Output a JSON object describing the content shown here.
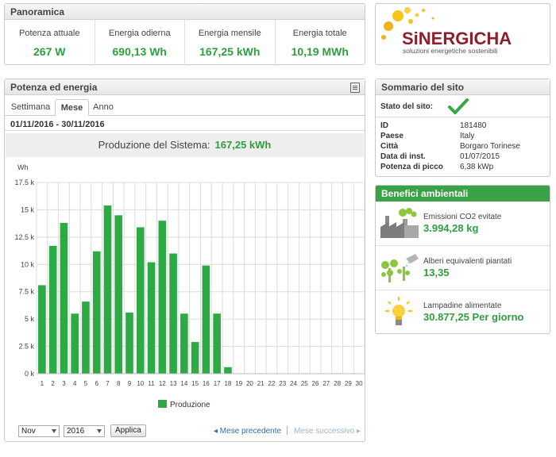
{
  "overview": {
    "title": "Panoramica",
    "items": [
      {
        "label": "Potenza attuale",
        "value": "267 W"
      },
      {
        "label": "Energia odierna",
        "value": "690,13 Wh"
      },
      {
        "label": "Energia mensile",
        "value": "167,25 kWh"
      },
      {
        "label": "Energia totale",
        "value": "10,19 MWh"
      }
    ]
  },
  "logo": {
    "name": "SiNERGICHA",
    "tagline": "soluzioni energetiche sostenibili"
  },
  "power_panel": {
    "title": "Potenza ed energia",
    "tabs": [
      "Settimana",
      "Mese",
      "Anno"
    ],
    "active_tab": "Mese",
    "date_range": "01/11/2016 - 30/11/2016",
    "production_label": "Produzione del Sistema:",
    "production_value": "167,25 kWh",
    "month_select": "Nov",
    "year_select": "2016",
    "apply_label": "Applica",
    "prev_label": "◂ Mese precedente",
    "next_label": "Mese successivo ▸"
  },
  "chart_data": {
    "type": "bar",
    "ylabel": "Wh",
    "ylim": [
      0,
      17500
    ],
    "yticks": [
      "0 k",
      "2.5 k",
      "5 k",
      "7.5 k",
      "10 k",
      "12.5 k",
      "15 k",
      "17.5 k"
    ],
    "categories": [
      "1",
      "2",
      "3",
      "4",
      "5",
      "6",
      "7",
      "8",
      "9",
      "10",
      "11",
      "12",
      "13",
      "14",
      "15",
      "16",
      "17",
      "18",
      "19",
      "20",
      "21",
      "22",
      "23",
      "24",
      "25",
      "26",
      "27",
      "28",
      "29",
      "30"
    ],
    "series": [
      {
        "name": "Produzione",
        "color": "#2eaa45",
        "values": [
          8100,
          11700,
          13800,
          5500,
          6600,
          11200,
          15400,
          14500,
          5600,
          13400,
          10200,
          14000,
          11000,
          5500,
          2900,
          9900,
          5500,
          600,
          0,
          0,
          0,
          0,
          0,
          0,
          0,
          0,
          0,
          0,
          0,
          0
        ]
      }
    ],
    "legend": "bottom",
    "grid": true
  },
  "summary": {
    "title": "Sommario del sito",
    "status_label": "Stato del sito:",
    "rows": [
      {
        "key": "ID",
        "value": "181480"
      },
      {
        "key": "Paese",
        "value": "Italy"
      },
      {
        "key": "Città",
        "value": "Borgaro Torinese"
      },
      {
        "key": "Data di inst.",
        "value": "01/07/2015"
      },
      {
        "key": "Potenza di picco",
        "value": "6,38 kWp"
      }
    ]
  },
  "benefits": {
    "title": "Benefici ambientali",
    "items": [
      {
        "label": "Emissioni CO2 evitate",
        "value": "3.994,28 kg",
        "icon": "factory-icon"
      },
      {
        "label": "Alberi equivalenti piantati",
        "value": "13,35",
        "icon": "tree-icon"
      },
      {
        "label": "Lampadine alimentate",
        "value": "30.877,25 Per giorno",
        "icon": "lightbulb-icon"
      }
    ]
  },
  "colors": {
    "accent": "#2f9e3f",
    "bar": "#2eaa45",
    "link": "#2b6cb5"
  }
}
